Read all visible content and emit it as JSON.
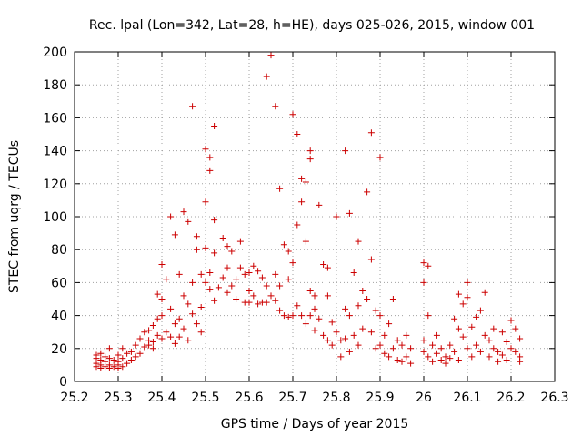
{
  "chart_data": {
    "type": "scatter",
    "title": "Rec. lpal (Lon=342, Lat=28, h=HE), days 025-026, 2015, window 001",
    "xlabel": "GPS time / Days of year 2015",
    "ylabel": "STEC from uqrg / TECUs",
    "xlim": [
      25.2,
      26.3
    ],
    "ylim": [
      0,
      200
    ],
    "xticks": [
      "25.2",
      "25.3",
      "25.4",
      "25.5",
      "25.6",
      "25.7",
      "25.8",
      "25.9",
      "26",
      "26.1",
      "26.2",
      "26.3"
    ],
    "yticks": [
      "0",
      "20",
      "40",
      "60",
      "80",
      "100",
      "120",
      "140",
      "160",
      "180",
      "200"
    ],
    "grid": true,
    "marker": "plus",
    "color": "#cc0000",
    "series": [
      {
        "points": [
          [
            25.25,
            16
          ],
          [
            25.25,
            14
          ],
          [
            25.25,
            11
          ],
          [
            25.25,
            9
          ],
          [
            25.26,
            17
          ],
          [
            25.26,
            13
          ],
          [
            25.26,
            10
          ],
          [
            25.26,
            8
          ],
          [
            25.27,
            15
          ],
          [
            25.27,
            12
          ],
          [
            25.27,
            9
          ],
          [
            25.28,
            20
          ],
          [
            25.28,
            14
          ],
          [
            25.28,
            10
          ],
          [
            25.28,
            8
          ],
          [
            25.29,
            13
          ],
          [
            25.29,
            9
          ],
          [
            25.3,
            16
          ],
          [
            25.3,
            12
          ],
          [
            25.3,
            10
          ],
          [
            25.3,
            8
          ],
          [
            25.31,
            20
          ],
          [
            25.31,
            14
          ],
          [
            25.31,
            9
          ],
          [
            25.32,
            17
          ],
          [
            25.32,
            11
          ],
          [
            25.33,
            18
          ],
          [
            25.33,
            13
          ],
          [
            25.34,
            22
          ],
          [
            25.34,
            15
          ],
          [
            25.35,
            26
          ],
          [
            25.35,
            17
          ],
          [
            25.36,
            30
          ],
          [
            25.36,
            21
          ],
          [
            25.37,
            31
          ],
          [
            25.37,
            22
          ],
          [
            25.37,
            25
          ],
          [
            25.38,
            34
          ],
          [
            25.38,
            24
          ],
          [
            25.38,
            20
          ],
          [
            25.39,
            53
          ],
          [
            25.39,
            38
          ],
          [
            25.39,
            28
          ],
          [
            25.4,
            50
          ],
          [
            25.4,
            71
          ],
          [
            25.4,
            40
          ],
          [
            25.4,
            26
          ],
          [
            25.41,
            62
          ],
          [
            25.41,
            30
          ],
          [
            25.42,
            100
          ],
          [
            25.42,
            44
          ],
          [
            25.42,
            27
          ],
          [
            25.43,
            89
          ],
          [
            25.43,
            35
          ],
          [
            25.43,
            23
          ],
          [
            25.44,
            65
          ],
          [
            25.44,
            38
          ],
          [
            25.44,
            27
          ],
          [
            25.45,
            103
          ],
          [
            25.45,
            52
          ],
          [
            25.45,
            32
          ],
          [
            25.46,
            97
          ],
          [
            25.46,
            47
          ],
          [
            25.46,
            25
          ],
          [
            25.47,
            167
          ],
          [
            25.47,
            60
          ],
          [
            25.47,
            41
          ],
          [
            25.48,
            88
          ],
          [
            25.48,
            80
          ],
          [
            25.48,
            35
          ],
          [
            25.49,
            65
          ],
          [
            25.49,
            45
          ],
          [
            25.49,
            30
          ],
          [
            25.5,
            141
          ],
          [
            25.5,
            109
          ],
          [
            25.5,
            81
          ],
          [
            25.5,
            60
          ],
          [
            25.51,
            136
          ],
          [
            25.51,
            128
          ],
          [
            25.51,
            66
          ],
          [
            25.51,
            56
          ],
          [
            25.52,
            155
          ],
          [
            25.52,
            98
          ],
          [
            25.52,
            78
          ],
          [
            25.52,
            49
          ],
          [
            25.53,
            57
          ],
          [
            25.54,
            87
          ],
          [
            25.54,
            63
          ],
          [
            25.55,
            82
          ],
          [
            25.55,
            69
          ],
          [
            25.55,
            54
          ],
          [
            25.56,
            79
          ],
          [
            25.56,
            58
          ],
          [
            25.57,
            62
          ],
          [
            25.57,
            50
          ],
          [
            25.58,
            85
          ],
          [
            25.58,
            69
          ],
          [
            25.59,
            65
          ],
          [
            25.59,
            48
          ],
          [
            25.6,
            66
          ],
          [
            25.6,
            55
          ],
          [
            25.6,
            48
          ],
          [
            25.61,
            70
          ],
          [
            25.61,
            52
          ],
          [
            25.62,
            67
          ],
          [
            25.62,
            47
          ],
          [
            25.63,
            63
          ],
          [
            25.63,
            48
          ],
          [
            25.64,
            185
          ],
          [
            25.64,
            58
          ],
          [
            25.64,
            48
          ],
          [
            25.65,
            198
          ],
          [
            25.65,
            52
          ],
          [
            25.66,
            167
          ],
          [
            25.66,
            65
          ],
          [
            25.66,
            49
          ],
          [
            25.67,
            117
          ],
          [
            25.67,
            58
          ],
          [
            25.67,
            43
          ],
          [
            25.68,
            83
          ],
          [
            25.68,
            40
          ],
          [
            25.69,
            79
          ],
          [
            25.69,
            62
          ],
          [
            25.69,
            39
          ],
          [
            25.7,
            162
          ],
          [
            25.7,
            72
          ],
          [
            25.7,
            40
          ],
          [
            25.71,
            150
          ],
          [
            25.71,
            95
          ],
          [
            25.71,
            46
          ],
          [
            25.72,
            123
          ],
          [
            25.72,
            109
          ],
          [
            25.72,
            40
          ],
          [
            25.73,
            121
          ],
          [
            25.73,
            85
          ],
          [
            25.73,
            35
          ],
          [
            25.74,
            140
          ],
          [
            25.74,
            135
          ],
          [
            25.74,
            55
          ],
          [
            25.74,
            40
          ],
          [
            25.75,
            52
          ],
          [
            25.75,
            44
          ],
          [
            25.75,
            31
          ],
          [
            25.76,
            107
          ],
          [
            25.76,
            38
          ],
          [
            25.77,
            71
          ],
          [
            25.77,
            28
          ],
          [
            25.78,
            69
          ],
          [
            25.78,
            52
          ],
          [
            25.78,
            25
          ],
          [
            25.79,
            36
          ],
          [
            25.79,
            22
          ],
          [
            25.8,
            100
          ],
          [
            25.8,
            30
          ],
          [
            25.81,
            25
          ],
          [
            25.81,
            15
          ],
          [
            25.82,
            140
          ],
          [
            25.82,
            44
          ],
          [
            25.82,
            26
          ],
          [
            25.83,
            102
          ],
          [
            25.83,
            40
          ],
          [
            25.83,
            18
          ],
          [
            25.84,
            66
          ],
          [
            25.84,
            28
          ],
          [
            25.85,
            85
          ],
          [
            25.85,
            46
          ],
          [
            25.85,
            22
          ],
          [
            25.86,
            55
          ],
          [
            25.86,
            32
          ],
          [
            25.87,
            115
          ],
          [
            25.87,
            50
          ],
          [
            25.88,
            151
          ],
          [
            25.88,
            74
          ],
          [
            25.88,
            30
          ],
          [
            25.89,
            43
          ],
          [
            25.89,
            20
          ],
          [
            25.9,
            136
          ],
          [
            25.9,
            40
          ],
          [
            25.9,
            22
          ],
          [
            25.91,
            28
          ],
          [
            25.91,
            17
          ],
          [
            25.92,
            35
          ],
          [
            25.92,
            15
          ],
          [
            25.93,
            50
          ],
          [
            25.93,
            20
          ],
          [
            25.94,
            25
          ],
          [
            25.94,
            13
          ],
          [
            25.95,
            22
          ],
          [
            25.95,
            12
          ],
          [
            25.96,
            28
          ],
          [
            25.96,
            15
          ],
          [
            25.97,
            20
          ],
          [
            25.97,
            11
          ],
          [
            26.0,
            72
          ],
          [
            26.0,
            60
          ],
          [
            26.0,
            25
          ],
          [
            26.0,
            18
          ],
          [
            26.01,
            70
          ],
          [
            26.01,
            40
          ],
          [
            26.01,
            15
          ],
          [
            26.02,
            22
          ],
          [
            26.02,
            12
          ],
          [
            26.03,
            28
          ],
          [
            26.03,
            17
          ],
          [
            26.04,
            20
          ],
          [
            26.04,
            13
          ],
          [
            26.05,
            15
          ],
          [
            26.05,
            11
          ],
          [
            26.06,
            22
          ],
          [
            26.06,
            14
          ],
          [
            26.07,
            38
          ],
          [
            26.07,
            18
          ],
          [
            26.08,
            53
          ],
          [
            26.08,
            32
          ],
          [
            26.08,
            13
          ],
          [
            26.09,
            47
          ],
          [
            26.09,
            27
          ],
          [
            26.1,
            60
          ],
          [
            26.1,
            51
          ],
          [
            26.1,
            20
          ],
          [
            26.11,
            33
          ],
          [
            26.11,
            15
          ],
          [
            26.12,
            39
          ],
          [
            26.12,
            22
          ],
          [
            26.13,
            43
          ],
          [
            26.13,
            18
          ],
          [
            26.14,
            54
          ],
          [
            26.14,
            28
          ],
          [
            26.15,
            25
          ],
          [
            26.15,
            15
          ],
          [
            26.16,
            32
          ],
          [
            26.16,
            20
          ],
          [
            26.17,
            18
          ],
          [
            26.17,
            12
          ],
          [
            26.18,
            30
          ],
          [
            26.18,
            16
          ],
          [
            26.19,
            24
          ],
          [
            26.19,
            13
          ],
          [
            26.2,
            37
          ],
          [
            26.2,
            20
          ],
          [
            26.21,
            32
          ],
          [
            26.21,
            18
          ],
          [
            26.22,
            26
          ],
          [
            26.22,
            12
          ],
          [
            26.22,
            15
          ]
        ]
      }
    ]
  }
}
